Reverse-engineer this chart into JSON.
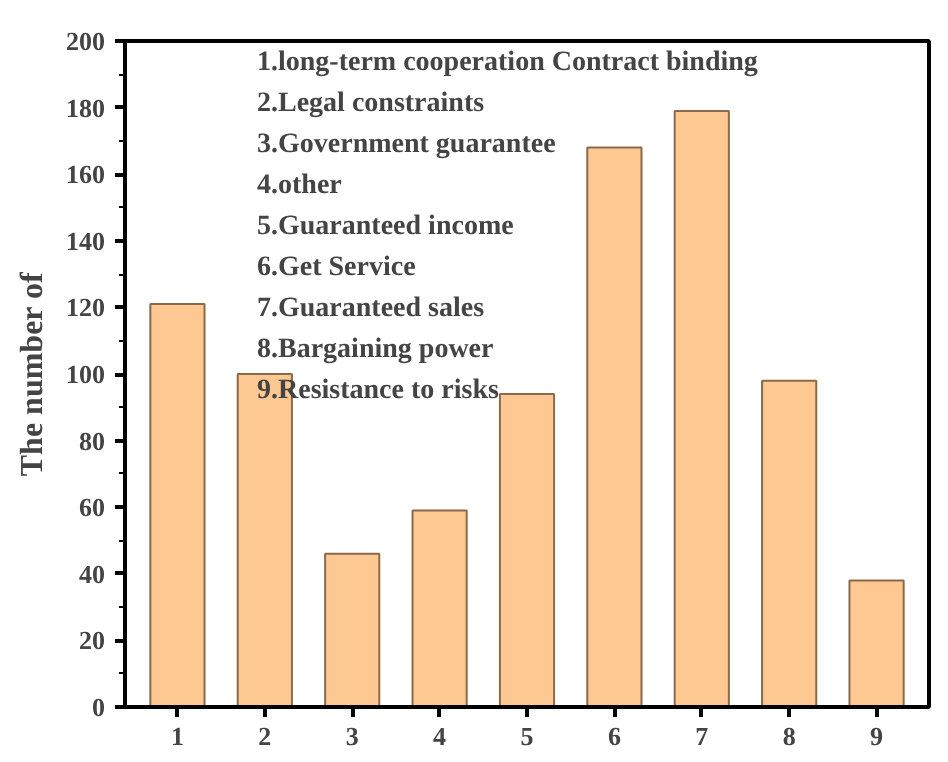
{
  "chart_data": {
    "type": "bar",
    "ylabel": "The number of",
    "categories": [
      "1",
      "2",
      "3",
      "4",
      "5",
      "6",
      "7",
      "8",
      "9"
    ],
    "values": [
      121,
      100,
      46,
      59,
      94,
      168,
      179,
      98,
      38
    ],
    "color": "#fdc891",
    "ylim": [
      0,
      200
    ],
    "yticks": [
      0,
      20,
      40,
      60,
      80,
      100,
      120,
      140,
      160,
      180,
      200
    ],
    "grid": false,
    "annotations": [
      "1.long-term cooperation Contract binding",
      "2.Legal constraints",
      "3.Government guarantee",
      "4.other",
      "5.Guaranteed income",
      "6.Get Service",
      "7.Guaranteed sales",
      "8.Bargaining power",
      "9.Resistance to risks"
    ]
  }
}
